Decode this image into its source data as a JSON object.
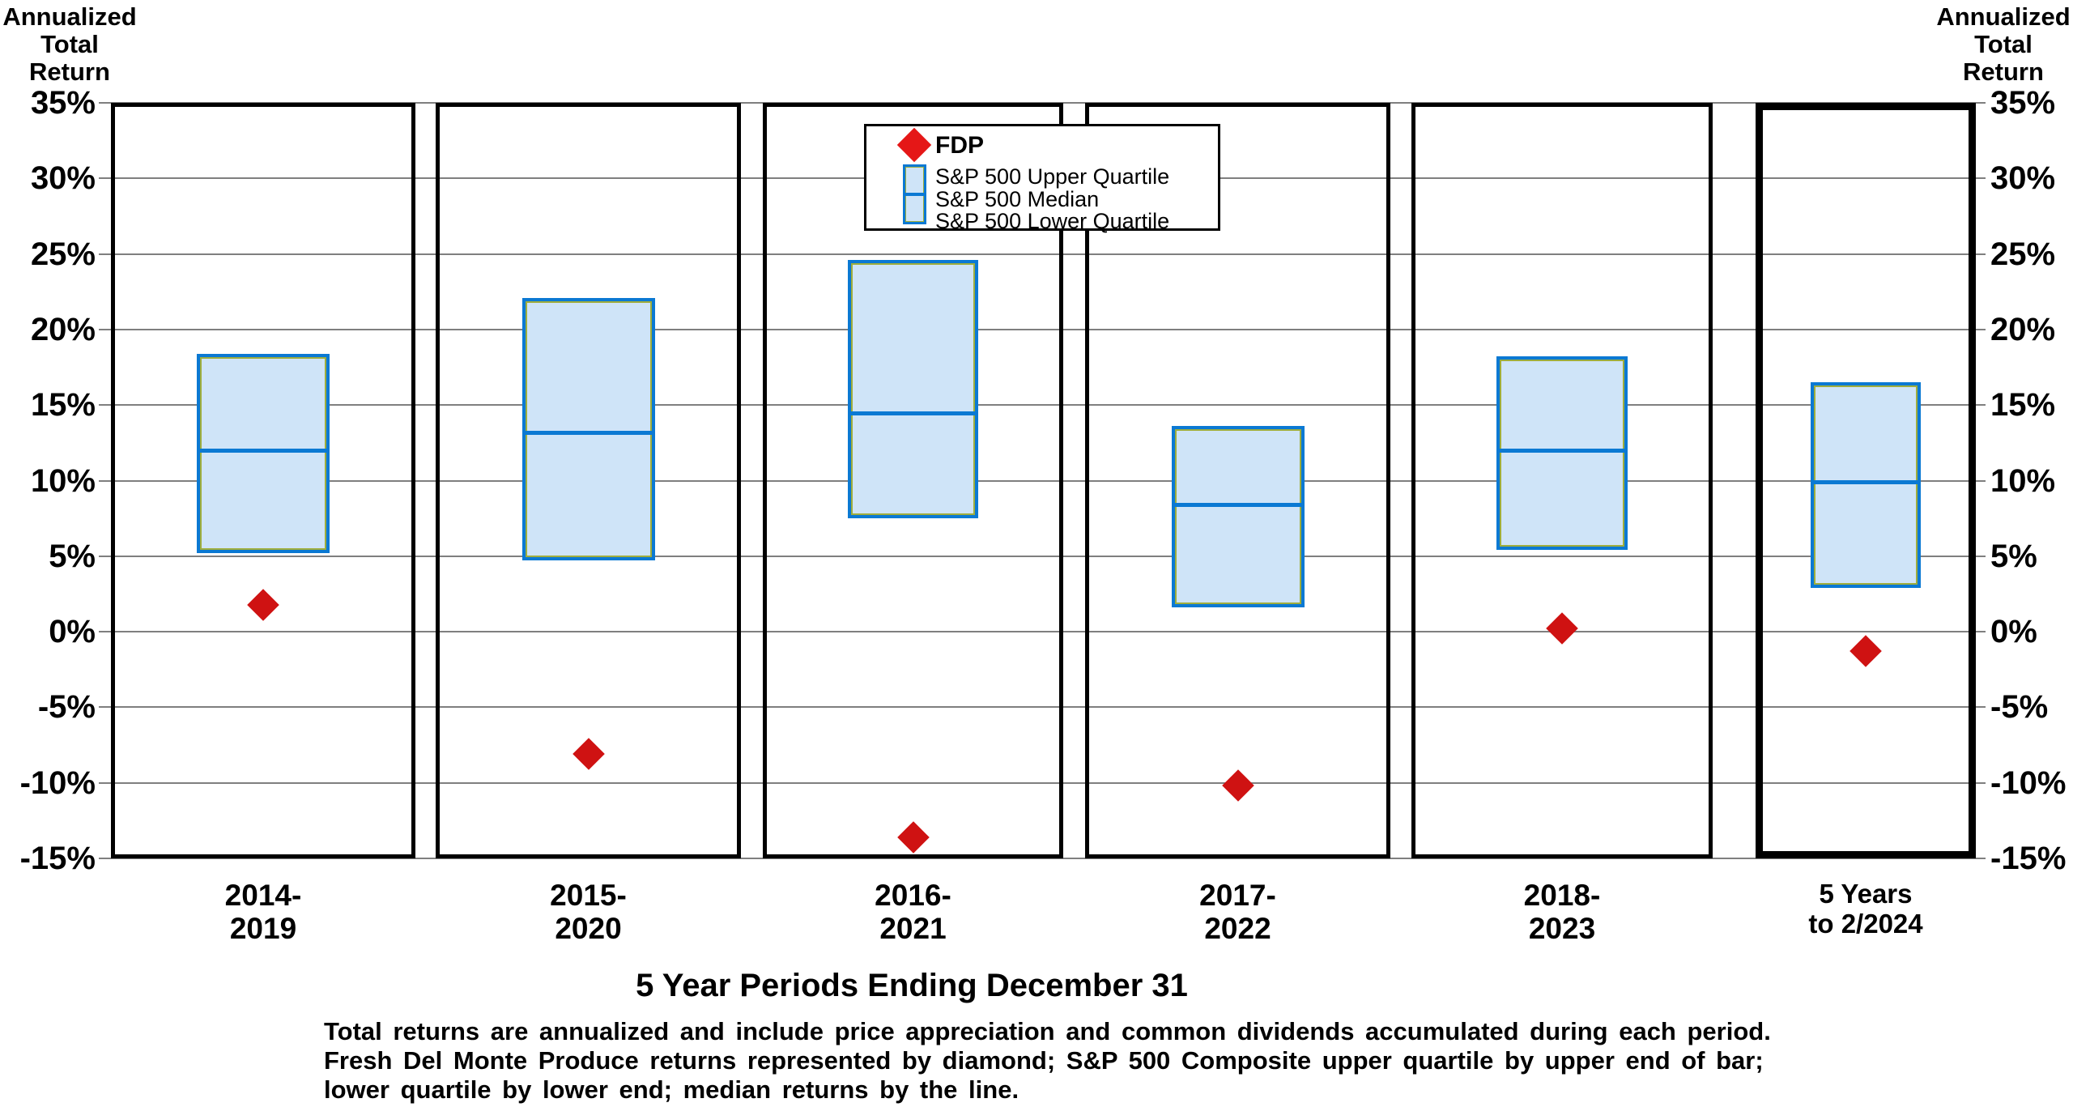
{
  "headers": {
    "left": "Annualized\nTotal\nReturn",
    "right": "Annualized\nTotal\nReturn"
  },
  "legend": {
    "fdp_label": "FDP",
    "upper_label": "S&P 500 Upper Quartile",
    "median_label": "S&P 500 Median",
    "lower_label": "S&P 500 Lower Quartile"
  },
  "footer": {
    "caption_lines": [
      "Total returns are annualized and include price appreciation and common dividends accumulated during each period.",
      "Fresh Del Monte Produce returns represented by diamond; S&P 500 Composite upper quartile by upper end of bar;",
      "lower quartile by lower end; median returns by the line."
    ]
  },
  "colors": {
    "point_red": "#cf1212",
    "legend_red": "#e51717",
    "box_fill": "#cfe4f8",
    "box_border": "#0b79d3",
    "box_inner": "#9fad3c",
    "grid": "#7f7f7f",
    "frame": "#000000"
  },
  "chart_data": {
    "type": "box-strip",
    "title": "",
    "xlabel": "5 Year Periods Ending December 31",
    "ylabel": "Annualized Total Return",
    "y_axis": {
      "min": -15,
      "max": 35,
      "step": 5,
      "tick_suffix": "%"
    },
    "grid": true,
    "legend_position": "top-center",
    "series_note": "Each panel: S&P 500 upper quartile = box top, lower quartile = box bottom, median = line; FDP = red diamond",
    "panels": [
      {
        "label_lines": [
          "2014-",
          "2019"
        ],
        "upper_quartile": 18.4,
        "median": 12.0,
        "lower_quartile": 5.2,
        "fdp": 1.8,
        "emphasized": false
      },
      {
        "label_lines": [
          "2015-",
          "2020"
        ],
        "upper_quartile": 22.1,
        "median": 13.2,
        "lower_quartile": 4.7,
        "fdp": -8.1,
        "emphasized": false
      },
      {
        "label_lines": [
          "2016-",
          "2021"
        ],
        "upper_quartile": 24.6,
        "median": 14.5,
        "lower_quartile": 7.5,
        "fdp": -13.6,
        "emphasized": false
      },
      {
        "label_lines": [
          "2017-",
          "2022"
        ],
        "upper_quartile": 13.6,
        "median": 8.4,
        "lower_quartile": 1.6,
        "fdp": -10.2,
        "emphasized": false
      },
      {
        "label_lines": [
          "2018-",
          "2023"
        ],
        "upper_quartile": 18.2,
        "median": 12.0,
        "lower_quartile": 5.4,
        "fdp": 0.2,
        "emphasized": false
      },
      {
        "label_lines": [
          "5 Years",
          "to  2/2024"
        ],
        "upper_quartile": 16.5,
        "median": 9.9,
        "lower_quartile": 2.9,
        "fdp": -1.3,
        "emphasized": true
      }
    ]
  }
}
